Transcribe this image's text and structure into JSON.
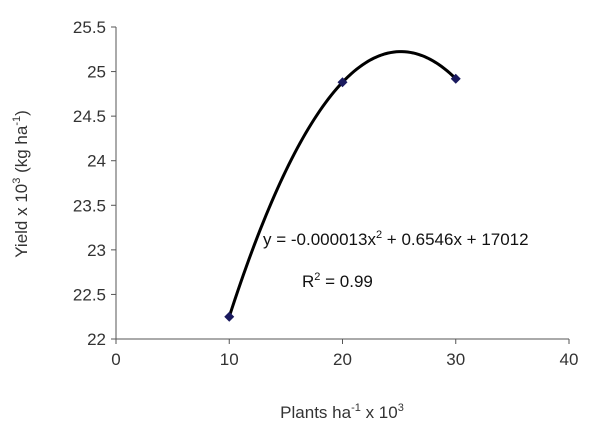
{
  "chart_data": {
    "type": "scatter",
    "title": "",
    "x_label": {
      "main": "Plants ha",
      "sup1": "-1",
      "mid": " x 10",
      "sup2": "3"
    },
    "y_label": {
      "main": "Yield x 10",
      "sup1": "3",
      "mid": " (kg ha",
      "sup2": "-1",
      "end": ")"
    },
    "xlim": [
      0,
      40
    ],
    "ylim": [
      22,
      25.5
    ],
    "x_ticks": [
      "0",
      "10",
      "20",
      "30",
      "40"
    ],
    "y_ticks": [
      "22",
      "22.5",
      "23",
      "23.5",
      "24",
      "24.5",
      "25",
      "25.5"
    ],
    "grid": false,
    "legend": "none",
    "series": [
      {
        "points": [
          {
            "x": 10,
            "y": 22.25
          },
          {
            "x": 20,
            "y": 24.88
          },
          {
            "x": 30,
            "y": 24.92
          }
        ],
        "marker": "diamond",
        "color": "#1a1a5e"
      }
    ],
    "trendline": {
      "type": "polynomial-2",
      "color": "#000000",
      "equation": {
        "a": "y = -0.000013x",
        "a_sup": "2",
        "b": " + 0.6546x + 17012"
      },
      "r2": {
        "a": "R",
        "sup": "2",
        "b": " = 0.99"
      }
    }
  }
}
